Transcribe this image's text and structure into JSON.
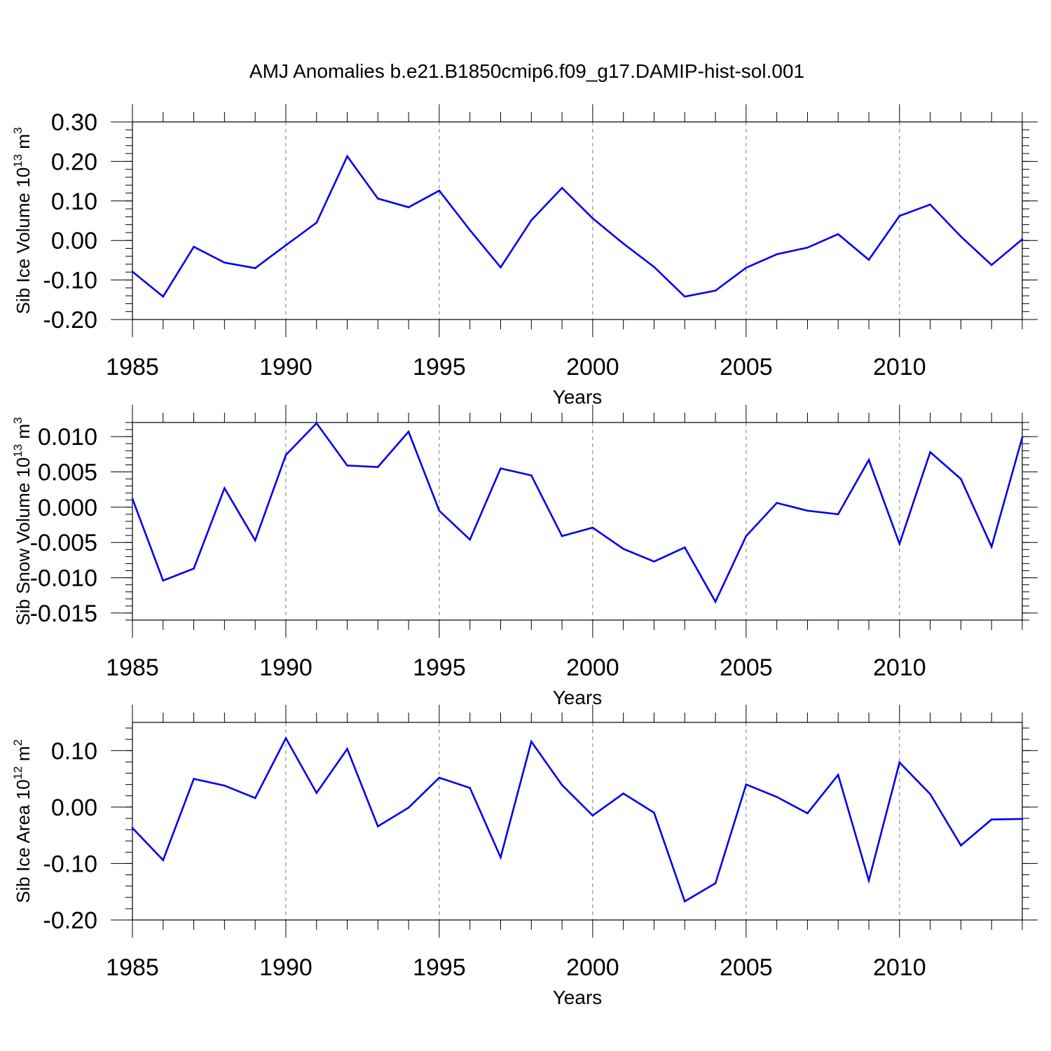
{
  "title": "AMJ Anomalies b.e21.B1850cmip6.f09_g17.DAMIP-hist-sol.001",
  "colors": {
    "line": "#0000ee",
    "axis": "#000000",
    "grid": "#777777"
  },
  "chart_data": [
    {
      "type": "line",
      "ylabel_main": "Sib Ice Volume 10",
      "ylabel_exp": "13",
      "ylabel_tail": " m",
      "ylabel_exp2": "3",
      "xlabel": "Years",
      "xlim": [
        1985,
        2014
      ],
      "ylim": [
        -0.2,
        0.3
      ],
      "yticks": [
        -0.2,
        -0.1,
        0.0,
        0.1,
        0.2,
        0.3
      ],
      "yticklabels": [
        "-0.20",
        "-0.10",
        "0.00",
        "0.10",
        "0.20",
        "0.30"
      ],
      "yminor": 0.02,
      "xticks": [
        1985,
        1990,
        1995,
        2000,
        2005,
        2010
      ],
      "xticklabels": [
        "1985",
        "1990",
        "1995",
        "2000",
        "2005",
        "2010"
      ],
      "grid_x": [
        1990,
        1995,
        2000,
        2005,
        2010
      ],
      "x": [
        1985,
        1986,
        1987,
        1988,
        1989,
        1990,
        1991,
        1992,
        1993,
        1994,
        1995,
        1996,
        1997,
        1998,
        1999,
        2000,
        2001,
        2002,
        2003,
        2004,
        2005,
        2006,
        2007,
        2008,
        2009,
        2010,
        2011,
        2012,
        2013,
        2014
      ],
      "values": [
        -0.079,
        -0.142,
        -0.016,
        -0.056,
        -0.07,
        -0.012,
        0.045,
        0.213,
        0.106,
        0.084,
        0.126,
        0.026,
        -0.068,
        0.051,
        0.133,
        0.056,
        -0.008,
        -0.067,
        -0.142,
        -0.127,
        -0.069,
        -0.035,
        -0.018,
        0.016,
        -0.049,
        0.062,
        0.091,
        0.01,
        -0.062,
        0.003
      ]
    },
    {
      "type": "line",
      "ylabel_main": "Sib Snow Volume 10",
      "ylabel_exp": "13",
      "ylabel_tail": " m",
      "ylabel_exp2": "3",
      "xlabel": "Years",
      "xlim": [
        1985,
        2014
      ],
      "ylim": [
        -0.016,
        0.012
      ],
      "yticks": [
        -0.015,
        -0.01,
        -0.005,
        0.0,
        0.005,
        0.01
      ],
      "yticklabels": [
        "-0.015",
        "-0.010",
        "-0.005",
        "0.000",
        "0.005",
        "0.010"
      ],
      "yminor": 0.001,
      "xticks": [
        1985,
        1990,
        1995,
        2000,
        2005,
        2010
      ],
      "xticklabels": [
        "1985",
        "1990",
        "1995",
        "2000",
        "2005",
        "2010"
      ],
      "grid_x": [
        1990,
        1995,
        2000,
        2005,
        2010
      ],
      "x": [
        1985,
        1986,
        1987,
        1988,
        1989,
        1990,
        1991,
        1992,
        1993,
        1994,
        1995,
        1996,
        1997,
        1998,
        1999,
        2000,
        2001,
        2002,
        2003,
        2004,
        2005,
        2006,
        2007,
        2008,
        2009,
        2010,
        2011,
        2012,
        2013,
        2014
      ],
      "values": [
        0.0012,
        -0.0104,
        -0.0087,
        0.0027,
        -0.0047,
        0.0074,
        0.0119,
        0.0059,
        0.0057,
        0.0107,
        -0.0005,
        -0.0046,
        0.0055,
        0.0045,
        -0.0041,
        -0.0029,
        -0.0059,
        -0.0077,
        -0.0057,
        -0.0134,
        -0.0041,
        0.0006,
        -0.0005,
        -0.001,
        0.0067,
        -0.0052,
        0.0078,
        0.004,
        -0.0056,
        0.0099
      ]
    },
    {
      "type": "line",
      "ylabel_main": "Sib Ice Area 10",
      "ylabel_exp": "12",
      "ylabel_tail": " m",
      "ylabel_exp2": "2",
      "xlabel": "Years",
      "xlim": [
        1985,
        2014
      ],
      "ylim": [
        -0.2,
        0.15
      ],
      "yticks": [
        -0.2,
        -0.1,
        0.0,
        0.1
      ],
      "yticklabels": [
        "-0.20",
        "-0.10",
        "0.00",
        "0.10"
      ],
      "yminor": 0.02,
      "xticks": [
        1985,
        1990,
        1995,
        2000,
        2005,
        2010
      ],
      "xticklabels": [
        "1985",
        "1990",
        "1995",
        "2000",
        "2005",
        "2010"
      ],
      "grid_x": [
        1990,
        1995,
        2000,
        2005,
        2010
      ],
      "x": [
        1985,
        1986,
        1987,
        1988,
        1989,
        1990,
        1991,
        1992,
        1993,
        1994,
        1995,
        1996,
        1997,
        1998,
        1999,
        2000,
        2001,
        2002,
        2003,
        2004,
        2005,
        2006,
        2007,
        2008,
        2009,
        2010,
        2011,
        2012,
        2013,
        2014
      ],
      "values": [
        -0.037,
        -0.094,
        0.05,
        0.038,
        0.016,
        0.122,
        0.025,
        0.103,
        -0.034,
        -0.001,
        0.052,
        0.034,
        -0.089,
        0.116,
        0.039,
        -0.015,
        0.024,
        -0.01,
        -0.167,
        -0.135,
        0.04,
        0.018,
        -0.011,
        0.057,
        -0.13,
        0.079,
        0.023,
        -0.068,
        -0.022,
        -0.021
      ]
    }
  ]
}
